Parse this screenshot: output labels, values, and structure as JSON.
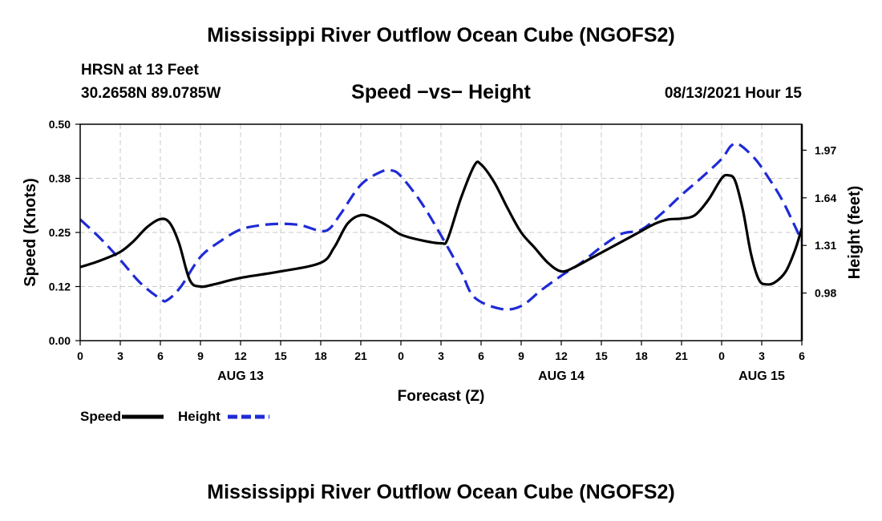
{
  "header": {
    "title": "Mississippi River Outflow Ocean Cube (NGOFS2)",
    "station": "HRSN at 13 Feet",
    "coords": "30.2658N  89.0785W",
    "subtitle": "Speed −vs− Height",
    "datetime": "08/13/2021 Hour 15"
  },
  "footer": {
    "title": "Mississippi River Outflow Ocean Cube (NGOFS2)"
  },
  "chart_data": {
    "type": "line",
    "title": "Speed -vs- Height",
    "xlabel": "Forecast (Z)",
    "ylabel": "Speed (Knots)",
    "y2label": "Height (feet)",
    "x_hours": [
      0,
      54
    ],
    "xticks": [
      {
        "h": 0,
        "label": "0"
      },
      {
        "h": 3,
        "label": "3"
      },
      {
        "h": 6,
        "label": "6"
      },
      {
        "h": 9,
        "label": "9"
      },
      {
        "h": 12,
        "label": "12"
      },
      {
        "h": 15,
        "label": "15"
      },
      {
        "h": 18,
        "label": "18"
      },
      {
        "h": 21,
        "label": "21"
      },
      {
        "h": 24,
        "label": "0"
      },
      {
        "h": 27,
        "label": "3"
      },
      {
        "h": 30,
        "label": "6"
      },
      {
        "h": 33,
        "label": "9"
      },
      {
        "h": 36,
        "label": "12"
      },
      {
        "h": 39,
        "label": "15"
      },
      {
        "h": 42,
        "label": "18"
      },
      {
        "h": 45,
        "label": "21"
      },
      {
        "h": 48,
        "label": "0"
      },
      {
        "h": 51,
        "label": "3"
      },
      {
        "h": 54,
        "label": "6"
      }
    ],
    "day_labels": [
      {
        "h": 12,
        "label": "AUG 13"
      },
      {
        "h": 36,
        "label": "AUG 14"
      },
      {
        "h": 51,
        "label": "AUG 15"
      }
    ],
    "y_left": {
      "min": 0,
      "max": 0.5,
      "ticks": [
        0,
        0.125,
        0.25,
        0.375,
        0.5
      ],
      "labels": [
        "0.00",
        "0.12",
        "0.25",
        "0.38",
        "0.50"
      ]
    },
    "y_right": {
      "min": 0.65,
      "max": 2.15,
      "ticks": [
        0.98,
        1.31,
        1.64,
        1.97
      ],
      "labels": [
        "0.98",
        "1.31",
        "1.64",
        "1.97"
      ]
    },
    "grid": true,
    "legend": [
      {
        "name": "Speed",
        "color": "#000000",
        "dash": "solid"
      },
      {
        "name": "Height",
        "color": "#1f2bd6",
        "dash": "dashed"
      }
    ],
    "series": [
      {
        "name": "Speed",
        "axis": "left",
        "color": "#000000",
        "points": [
          [
            0,
            0.17
          ],
          [
            1.5,
            0.185
          ],
          [
            3,
            0.205
          ],
          [
            4,
            0.23
          ],
          [
            5,
            0.262
          ],
          [
            6,
            0.281
          ],
          [
            6.7,
            0.272
          ],
          [
            7.4,
            0.225
          ],
          [
            8.2,
            0.14
          ],
          [
            9,
            0.125
          ],
          [
            10,
            0.13
          ],
          [
            12,
            0.145
          ],
          [
            15,
            0.16
          ],
          [
            18,
            0.18
          ],
          [
            19,
            0.215
          ],
          [
            20,
            0.27
          ],
          [
            21,
            0.29
          ],
          [
            22,
            0.282
          ],
          [
            23,
            0.265
          ],
          [
            24,
            0.245
          ],
          [
            25.5,
            0.232
          ],
          [
            27,
            0.225
          ],
          [
            27.5,
            0.235
          ],
          [
            28.5,
            0.33
          ],
          [
            29.5,
            0.405
          ],
          [
            30,
            0.407
          ],
          [
            31,
            0.365
          ],
          [
            32,
            0.305
          ],
          [
            33,
            0.25
          ],
          [
            34,
            0.215
          ],
          [
            35,
            0.18
          ],
          [
            36,
            0.16
          ],
          [
            37,
            0.17
          ],
          [
            38.5,
            0.195
          ],
          [
            40,
            0.22
          ],
          [
            41.5,
            0.245
          ],
          [
            43,
            0.27
          ],
          [
            44,
            0.28
          ],
          [
            45,
            0.282
          ],
          [
            46,
            0.29
          ],
          [
            47,
            0.325
          ],
          [
            48,
            0.375
          ],
          [
            48.5,
            0.382
          ],
          [
            49,
            0.37
          ],
          [
            49.6,
            0.3
          ],
          [
            50.2,
            0.2
          ],
          [
            50.8,
            0.14
          ],
          [
            51.4,
            0.13
          ],
          [
            52,
            0.135
          ],
          [
            52.8,
            0.16
          ],
          [
            53.5,
            0.21
          ],
          [
            54,
            0.26
          ]
        ]
      },
      {
        "name": "Height",
        "axis": "right",
        "color": "#1f2bd6",
        "points": [
          [
            0,
            1.49
          ],
          [
            1.5,
            1.36
          ],
          [
            3,
            1.21
          ],
          [
            4.5,
            1.05
          ],
          [
            6,
            0.94
          ],
          [
            6.5,
            0.93
          ],
          [
            7.5,
            1.02
          ],
          [
            9,
            1.23
          ],
          [
            10.5,
            1.34
          ],
          [
            12,
            1.42
          ],
          [
            13.5,
            1.45
          ],
          [
            15,
            1.46
          ],
          [
            16.5,
            1.45
          ],
          [
            18,
            1.41
          ],
          [
            18.7,
            1.43
          ],
          [
            19.5,
            1.53
          ],
          [
            21,
            1.73
          ],
          [
            22.5,
            1.82
          ],
          [
            23.3,
            1.83
          ],
          [
            24,
            1.79
          ],
          [
            25.5,
            1.61
          ],
          [
            27,
            1.38
          ],
          [
            28.5,
            1.13
          ],
          [
            29.5,
            0.95
          ],
          [
            31.5,
            0.87
          ],
          [
            33,
            0.89
          ],
          [
            34.5,
            1.0
          ],
          [
            36,
            1.1
          ],
          [
            37.5,
            1.19
          ],
          [
            39,
            1.3
          ],
          [
            40.5,
            1.39
          ],
          [
            42,
            1.42
          ],
          [
            43.5,
            1.53
          ],
          [
            45,
            1.66
          ],
          [
            46.5,
            1.78
          ],
          [
            48,
            1.91
          ],
          [
            48.7,
            2.0
          ],
          [
            49.3,
            2.01
          ],
          [
            50.5,
            1.91
          ],
          [
            51.5,
            1.78
          ],
          [
            52.5,
            1.63
          ],
          [
            53.5,
            1.44
          ],
          [
            54,
            1.34
          ]
        ]
      }
    ]
  }
}
